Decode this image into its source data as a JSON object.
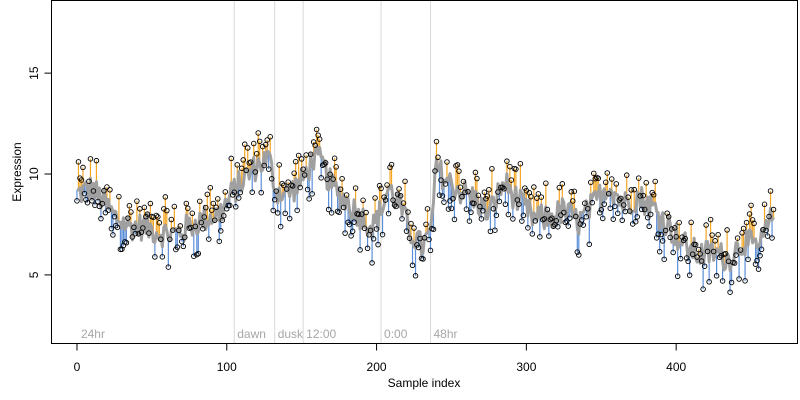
{
  "chart_data": {
    "type": "scatter",
    "xlabel": "Sample index",
    "ylabel": "Expression",
    "xlim": [
      -17,
      481
    ],
    "ylim": [
      1.6,
      18.6
    ],
    "x_ticks": [
      0,
      100,
      200,
      300,
      400
    ],
    "y_ticks": [
      5,
      10,
      15
    ],
    "grid": false,
    "legend": "none",
    "n_samples": 466,
    "regions": [
      {
        "label": "24hr",
        "start": 0
      },
      {
        "label": "dawn",
        "start": 105
      },
      {
        "label": "dusk",
        "start": 132
      },
      {
        "label": "12:00",
        "start": 151
      },
      {
        "label": "0:00",
        "start": 203
      },
      {
        "label": "48hr",
        "start": 236
      }
    ],
    "colors": {
      "smooth_line": "#a0a0a0",
      "residual_above": "#f5a623",
      "residual_below": "#5b8fd8",
      "point_edge": "#000000",
      "region_divider": "#d9d9d9",
      "region_label": "#a6a6a6"
    },
    "trend_knots": [
      [
        0,
        9.0
      ],
      [
        10,
        9.3
      ],
      [
        18,
        8.6
      ],
      [
        25,
        7.9
      ],
      [
        35,
        7.4
      ],
      [
        45,
        7.4
      ],
      [
        55,
        7.1
      ],
      [
        65,
        7.0
      ],
      [
        75,
        7.4
      ],
      [
        85,
        7.8
      ],
      [
        95,
        8.0
      ],
      [
        105,
        9.2
      ],
      [
        112,
        9.8
      ],
      [
        120,
        10.4
      ],
      [
        128,
        10.8
      ],
      [
        133,
        9.2
      ],
      [
        140,
        9.0
      ],
      [
        150,
        9.6
      ],
      [
        158,
        10.8
      ],
      [
        163,
        10.6
      ],
      [
        170,
        9.4
      ],
      [
        178,
        8.8
      ],
      [
        188,
        8.0
      ],
      [
        198,
        7.4
      ],
      [
        203,
        8.2
      ],
      [
        208,
        9.3
      ],
      [
        215,
        8.5
      ],
      [
        222,
        7.2
      ],
      [
        230,
        6.4
      ],
      [
        236,
        7.0
      ],
      [
        240,
        10.3
      ],
      [
        248,
        9.6
      ],
      [
        255,
        9.2
      ],
      [
        265,
        8.8
      ],
      [
        275,
        8.0
      ],
      [
        285,
        9.6
      ],
      [
        295,
        8.6
      ],
      [
        305,
        7.8
      ],
      [
        315,
        7.8
      ],
      [
        325,
        8.2
      ],
      [
        335,
        7.6
      ],
      [
        345,
        8.5
      ],
      [
        355,
        9.5
      ],
      [
        365,
        8.5
      ],
      [
        375,
        8.9
      ],
      [
        385,
        8.3
      ],
      [
        395,
        7.4
      ],
      [
        405,
        6.5
      ],
      [
        415,
        6.0
      ],
      [
        425,
        6.1
      ],
      [
        435,
        5.8
      ],
      [
        445,
        6.7
      ],
      [
        455,
        6.3
      ],
      [
        465,
        8.0
      ]
    ]
  }
}
